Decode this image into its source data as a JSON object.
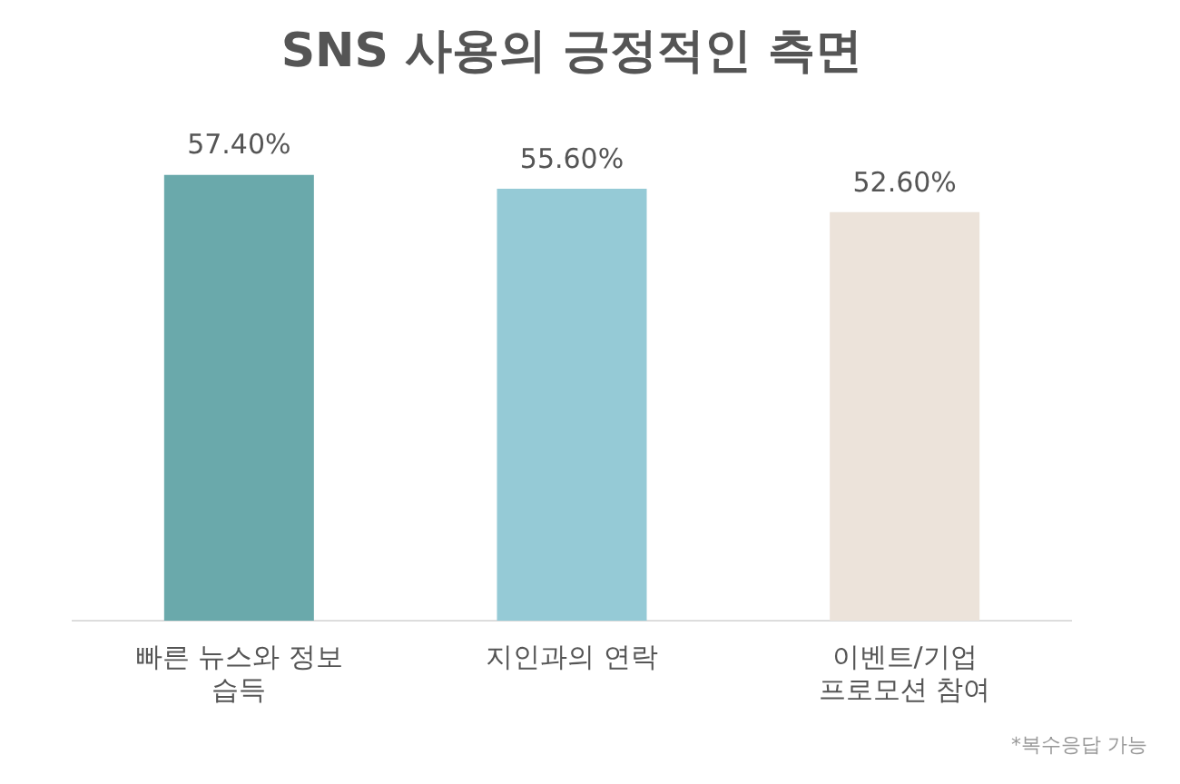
{
  "chart_data": {
    "type": "bar",
    "title": "SNS 사용의 긍정적인 측면",
    "categories": [
      "빠른 뉴스와 정보 습득",
      "지인과의 연락",
      "이벤트/기업 프로모션 참여"
    ],
    "values": [
      57.4,
      55.6,
      52.6
    ],
    "colors": [
      "#6aa9ab",
      "#95cad6",
      "#ece3da"
    ],
    "value_labels": [
      "57.40%",
      "55.60%",
      "52.60%"
    ],
    "grid": false,
    "legend": false,
    "annotations": [
      "*복수응답 가능"
    ]
  }
}
